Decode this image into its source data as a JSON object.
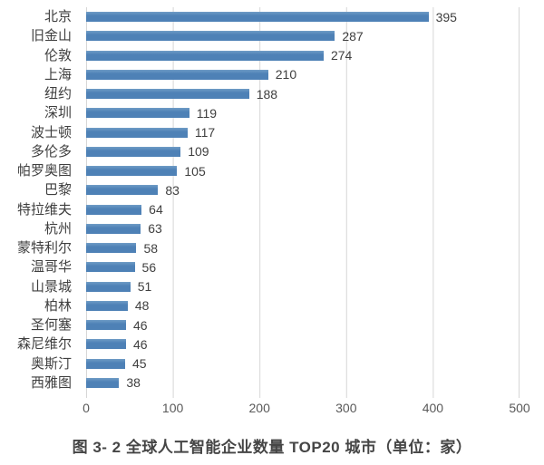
{
  "figure": {
    "caption": "图 3- 2 全球人工智能企业数量 TOP20 城市（单位：家）"
  },
  "chart_data": {
    "type": "bar",
    "orientation": "horizontal",
    "title": "",
    "xlabel": "",
    "ylabel": "",
    "categories": [
      "北京",
      "旧金山",
      "伦敦",
      "上海",
      "纽约",
      "深圳",
      "波士顿",
      "多伦多",
      "帕罗奥图",
      "巴黎",
      "特拉维夫",
      "杭州",
      "蒙特利尔",
      "温哥华",
      "山景城",
      "柏林",
      "圣何塞",
      "森尼维尔",
      "奥斯汀",
      "西雅图"
    ],
    "values": [
      395,
      287,
      274,
      210,
      188,
      119,
      117,
      109,
      105,
      83,
      64,
      63,
      58,
      56,
      51,
      48,
      46,
      46,
      45,
      38
    ],
    "xlim": [
      0,
      500
    ],
    "x_ticks": [
      "0",
      "100",
      "200",
      "300",
      "400",
      "500"
    ],
    "grid": "vertical-gridlines",
    "legend": "none",
    "value_labels": true,
    "colors": {
      "bar": "#4E81B6",
      "gridline": "#D6D6D6",
      "label_text": "#3F3F3F",
      "tick_text": "#595959",
      "caption_text": "#454545",
      "background": "#FFFFFF"
    }
  }
}
